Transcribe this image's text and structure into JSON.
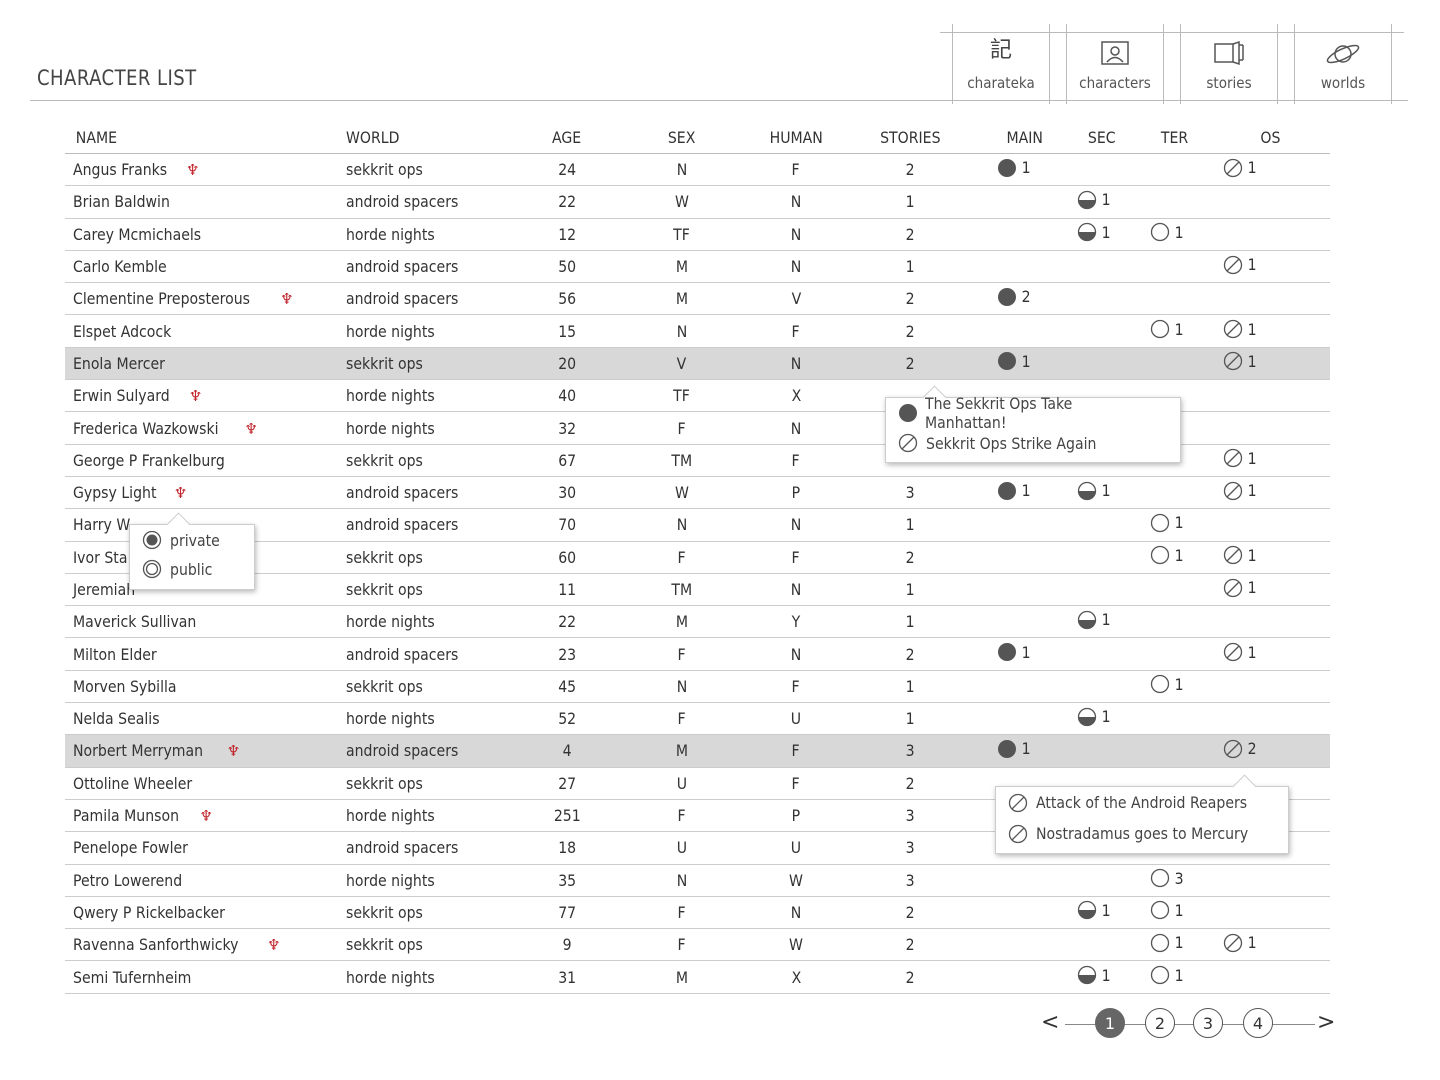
{
  "page_title": "CHARACTER LIST",
  "nav": [
    {
      "label": "charateka",
      "icon": "kanji-logo-icon"
    },
    {
      "label": "characters",
      "icon": "person-portrait-icon"
    },
    {
      "label": "stories",
      "icon": "book-icon"
    },
    {
      "label": "worlds",
      "icon": "planet-icon"
    }
  ],
  "columns": [
    "NAME",
    "WORLD",
    "AGE",
    "SEX",
    "HUMAN",
    "STORIES",
    "MAIN",
    "SEC",
    "TER",
    "OS"
  ],
  "rows": [
    {
      "name": "Angus Franks",
      "private": true,
      "world": "sekkrit ops",
      "age": "24",
      "sex": "N",
      "human": "F",
      "stories": "2",
      "main": "1",
      "sec": "",
      "ter": "",
      "os": "1"
    },
    {
      "name": "Brian Baldwin",
      "private": false,
      "world": "android spacers",
      "age": "22",
      "sex": "W",
      "human": "N",
      "stories": "1",
      "main": "",
      "sec": "1",
      "ter": "",
      "os": ""
    },
    {
      "name": "Carey Mcmichaels",
      "private": false,
      "world": "horde nights",
      "age": "12",
      "sex": "TF",
      "human": "N",
      "stories": "2",
      "main": "",
      "sec": "1",
      "ter": "1",
      "os": ""
    },
    {
      "name": "Carlo Kemble",
      "private": false,
      "world": "android spacers",
      "age": "50",
      "sex": "M",
      "human": "N",
      "stories": "1",
      "main": "",
      "sec": "",
      "ter": "",
      "os": "1"
    },
    {
      "name": "Clementine Preposterous",
      "private": true,
      "world": "android spacers",
      "age": "56",
      "sex": "M",
      "human": "V",
      "stories": "2",
      "main": "2",
      "sec": "",
      "ter": "",
      "os": ""
    },
    {
      "name": "Elspet Adcock",
      "private": false,
      "world": "horde nights",
      "age": "15",
      "sex": "N",
      "human": "F",
      "stories": "2",
      "main": "",
      "sec": "",
      "ter": "1",
      "os": "1"
    },
    {
      "name": "Enola Mercer",
      "private": false,
      "world": "sekkrit ops",
      "age": "20",
      "sex": "V",
      "human": "N",
      "stories": "2",
      "main": "1",
      "sec": "",
      "ter": "",
      "os": "1",
      "highlight": true
    },
    {
      "name": "Erwin Sulyard",
      "private": true,
      "world": "horde nights",
      "age": "40",
      "sex": "TF",
      "human": "X",
      "stories": "",
      "main": "",
      "sec": "",
      "ter": "",
      "os": ""
    },
    {
      "name": "Frederica Wazkowski",
      "private": true,
      "world": "horde nights",
      "age": "32",
      "sex": "F",
      "human": "N",
      "stories": "",
      "main": "",
      "sec": "",
      "ter": "",
      "os": ""
    },
    {
      "name": "George P Frankelburg",
      "private": false,
      "world": "sekkrit ops",
      "age": "67",
      "sex": "TM",
      "human": "F",
      "stories": "",
      "main": "",
      "sec": "",
      "ter": "",
      "os": "1"
    },
    {
      "name": "Gypsy Light",
      "private": true,
      "world": "android spacers",
      "age": "30",
      "sex": "W",
      "human": "P",
      "stories": "3",
      "main": "1",
      "sec": "1",
      "ter": "",
      "os": "1"
    },
    {
      "name": "Harry W",
      "private": false,
      "world": "android spacers",
      "age": "70",
      "sex": "N",
      "human": "N",
      "stories": "1",
      "main": "",
      "sec": "",
      "ter": "1",
      "os": ""
    },
    {
      "name": "Ivor Sta",
      "private": false,
      "world": "sekkrit ops",
      "age": "60",
      "sex": "F",
      "human": "F",
      "stories": "2",
      "main": "",
      "sec": "",
      "ter": "1",
      "os": "1"
    },
    {
      "name": "Jeremiah",
      "private": false,
      "world": "sekkrit ops",
      "age": "11",
      "sex": "TM",
      "human": "N",
      "stories": "1",
      "main": "",
      "sec": "",
      "ter": "",
      "os": "1"
    },
    {
      "name": "Maverick Sullivan",
      "private": false,
      "world": "horde nights",
      "age": "22",
      "sex": "M",
      "human": "Y",
      "stories": "1",
      "main": "",
      "sec": "1",
      "ter": "",
      "os": ""
    },
    {
      "name": "Milton Elder",
      "private": false,
      "world": "android spacers",
      "age": "23",
      "sex": "F",
      "human": "N",
      "stories": "2",
      "main": "1",
      "sec": "",
      "ter": "",
      "os": "1"
    },
    {
      "name": "Morven Sybilla",
      "private": false,
      "world": "sekkrit ops",
      "age": "45",
      "sex": "N",
      "human": "F",
      "stories": "1",
      "main": "",
      "sec": "",
      "ter": "1",
      "os": ""
    },
    {
      "name": "Nelda Sealis",
      "private": false,
      "world": "horde nights",
      "age": "52",
      "sex": "F",
      "human": "U",
      "stories": "1",
      "main": "",
      "sec": "1",
      "ter": "",
      "os": ""
    },
    {
      "name": "Norbert Merryman",
      "private": true,
      "world": "android spacers",
      "age": "4",
      "sex": "M",
      "human": "F",
      "stories": "3",
      "main": "1",
      "sec": "",
      "ter": "",
      "os": "2",
      "highlight": true
    },
    {
      "name": "Ottoline Wheeler",
      "private": false,
      "world": "sekkrit ops",
      "age": "27",
      "sex": "U",
      "human": "F",
      "stories": "2",
      "main": "",
      "sec": "",
      "ter": "",
      "os": ""
    },
    {
      "name": "Pamila Munson",
      "private": true,
      "world": "horde nights",
      "age": "251",
      "sex": "F",
      "human": "P",
      "stories": "3",
      "main": "",
      "sec": "",
      "ter": "",
      "os": ""
    },
    {
      "name": "Penelope Fowler",
      "private": false,
      "world": "android spacers",
      "age": "18",
      "sex": "U",
      "human": "U",
      "stories": "3",
      "main": "",
      "sec": "",
      "ter": "",
      "os": ""
    },
    {
      "name": "Petro Lowerend",
      "private": false,
      "world": "horde nights",
      "age": "35",
      "sex": "N",
      "human": "W",
      "stories": "3",
      "main": "",
      "sec": "",
      "ter": "3",
      "os": ""
    },
    {
      "name": "Qwery P Rickelbacker",
      "private": false,
      "world": "sekkrit ops",
      "age": "77",
      "sex": "F",
      "human": "N",
      "stories": "2",
      "main": "",
      "sec": "1",
      "ter": "1",
      "os": ""
    },
    {
      "name": "Ravenna Sanforthwicky",
      "private": true,
      "world": "sekkrit ops",
      "age": "9",
      "sex": "F",
      "human": "W",
      "stories": "2",
      "main": "",
      "sec": "",
      "ter": "1",
      "os": "1"
    },
    {
      "name": "Semi Tufernheim",
      "private": false,
      "world": "horde nights",
      "age": "31",
      "sex": "M",
      "human": "X",
      "stories": "2",
      "main": "",
      "sec": "1",
      "ter": "1",
      "os": ""
    }
  ],
  "privacy_popup": {
    "options": [
      "private",
      "public"
    ],
    "selected": "private"
  },
  "stories_popup": [
    {
      "type": "main",
      "title": "The Sekkrit Ops Take Manhattan!"
    },
    {
      "type": "os",
      "title": "Sekkrit Ops Strike Again"
    }
  ],
  "os_popup": [
    {
      "type": "os",
      "title": "Attack of the Android Reapers"
    },
    {
      "type": "os",
      "title": "Nostradamus goes to Mercury"
    }
  ],
  "pagination": {
    "pages": [
      "1",
      "2",
      "3",
      "4"
    ],
    "current": "1",
    "prev": "<",
    "next": ">"
  }
}
